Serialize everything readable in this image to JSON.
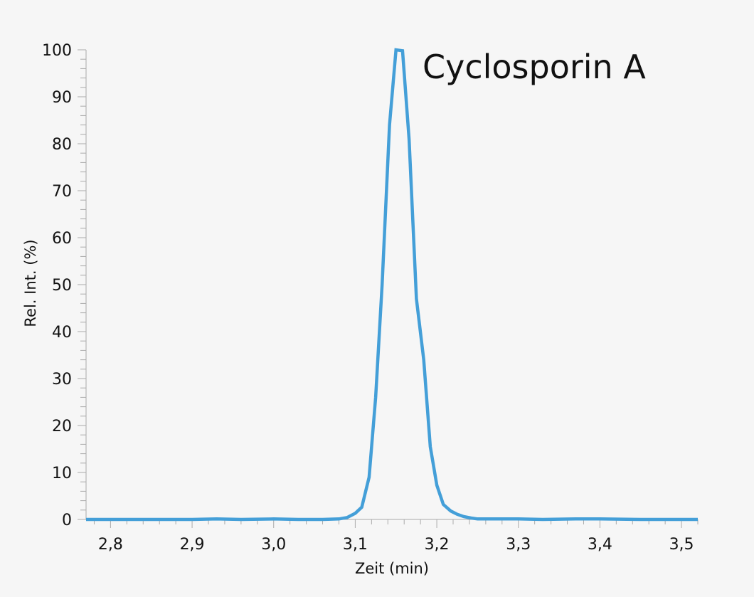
{
  "chart_data": {
    "type": "line",
    "title": "",
    "annotation": "Cyclosporin A",
    "xlabel": "Zeit (min)",
    "ylabel": "Rel. Int. (%)",
    "xlim": [
      2.77,
      3.52
    ],
    "ylim": [
      0,
      100
    ],
    "x_ticks": [
      "2,8",
      "2,9",
      "3,0",
      "3,1",
      "3,2",
      "3,3",
      "3,4",
      "3,5"
    ],
    "y_ticks": [
      "0",
      "10",
      "20",
      "30",
      "40",
      "50",
      "60",
      "70",
      "80",
      "90",
      "100"
    ],
    "grid": false,
    "line_color": "#449fd8",
    "series": [
      {
        "x": [
          2.77,
          2.8,
          2.85,
          2.9,
          2.93,
          2.96,
          3.0,
          3.03,
          3.06,
          3.08,
          3.09,
          3.1,
          3.108,
          3.117,
          3.125,
          3.133,
          3.142,
          3.15,
          3.158,
          3.166,
          3.175,
          3.184,
          3.192,
          3.2,
          3.208,
          3.217,
          3.225,
          3.233,
          3.242,
          3.25,
          3.27,
          3.3,
          3.33,
          3.37,
          3.4,
          3.45,
          3.52
        ],
        "y": [
          0,
          0,
          0,
          0,
          0.1,
          0,
          0.1,
          0,
          0,
          0.1,
          0.4,
          1.3,
          2.6,
          9,
          26,
          50,
          84,
          100,
          99.8,
          81,
          47,
          34,
          15.5,
          7.3,
          3.2,
          1.8,
          1.1,
          0.6,
          0.3,
          0.1,
          0.1,
          0.1,
          0,
          0.1,
          0.1,
          0,
          0
        ]
      }
    ]
  }
}
